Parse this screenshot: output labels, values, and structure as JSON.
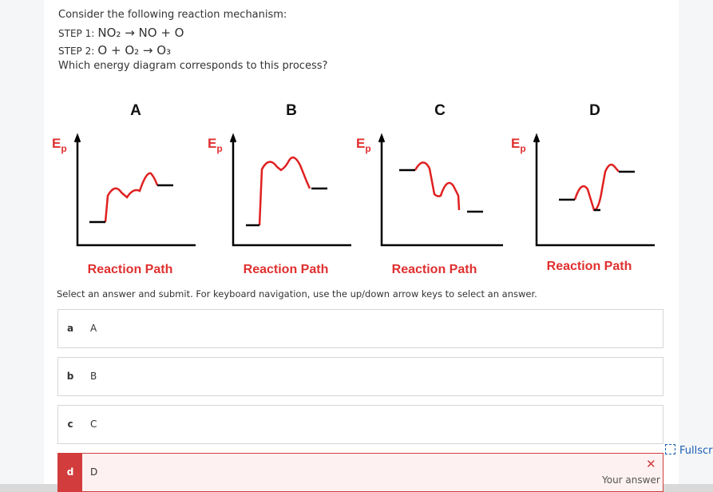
{
  "question": {
    "intro": "Consider the following reaction mechanism:",
    "steps": [
      {
        "label": "STEP 1:",
        "equation": "NO₂ → NO + O"
      },
      {
        "label": "STEP 2:",
        "equation": "O + O₂ → O₃"
      }
    ],
    "prompt": "Which energy diagram corresponds to this process?"
  },
  "diagrams": [
    {
      "label": "A",
      "y_axis": {
        "symbol": "E",
        "subscript": "p"
      },
      "x_axis": "Reaction Path"
    },
    {
      "label": "B",
      "y_axis": {
        "symbol": "E",
        "subscript": "p"
      },
      "x_axis": "Reaction Path"
    },
    {
      "label": "C",
      "y_axis": {
        "symbol": "E",
        "subscript": "p"
      },
      "x_axis": "Reaction Path"
    },
    {
      "label": "D",
      "y_axis": {
        "symbol": "E",
        "subscript": "p"
      },
      "x_axis": "Reaction Path"
    }
  ],
  "instructions": "Select an answer and submit. For keyboard navigation, use the up/down arrow keys to select an answer.",
  "options": [
    {
      "key": "a",
      "text": "A"
    },
    {
      "key": "b",
      "text": "B"
    },
    {
      "key": "c",
      "text": "C"
    },
    {
      "key": "d",
      "text": "D"
    }
  ],
  "feedback": {
    "mark": "✕",
    "text": "Your answer"
  },
  "fullscreen": "Fullscreen"
}
